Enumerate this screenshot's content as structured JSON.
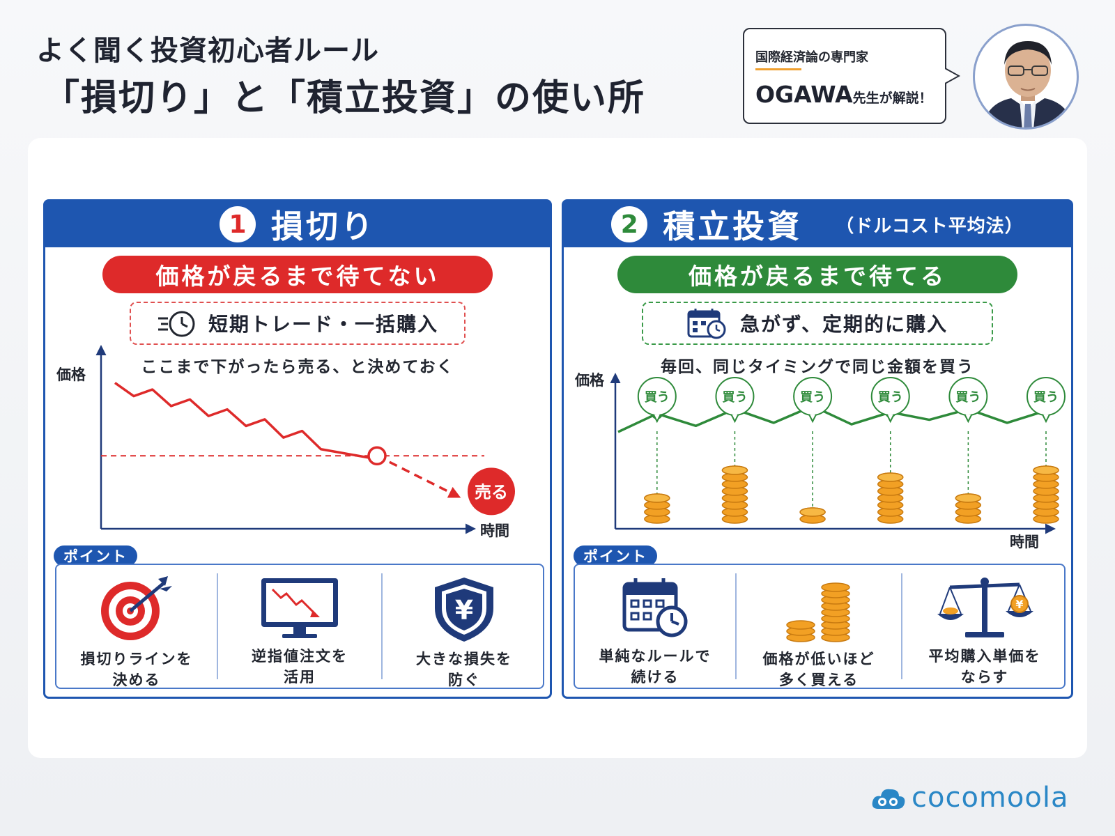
{
  "header": {
    "title_line1": "よく聞く投資初心者ルール",
    "title_line2": "「損切り」と「積立投資」の使い所"
  },
  "speaker": {
    "role": "国際経済論の専門家",
    "name": "OGAWA",
    "name_suffix": "先生が解説！"
  },
  "left_panel": {
    "number": "1",
    "title": "損切り",
    "pill": "価格が戻るまで待てない",
    "subtitle": "短期トレード・一括購入",
    "caption": "ここまで下がったら売る、と決めておく",
    "point_label": "ポイント",
    "points": [
      {
        "icon": "target-icon",
        "text": "損切りラインを\n決める"
      },
      {
        "icon": "monitor-chart-icon",
        "text": "逆指値注文を\n活用"
      },
      {
        "icon": "yen-shield-icon",
        "text": "大きな損失を\n防ぐ"
      }
    ]
  },
  "right_panel": {
    "number": "2",
    "title": "積立投資",
    "title_sub": "（ドルコスト平均法）",
    "pill": "価格が戻るまで待てる",
    "subtitle": "急がず、定期的に購入",
    "caption": "毎回、同じタイミングで同じ金額を買う",
    "point_label": "ポイント",
    "points": [
      {
        "icon": "calendar-clock-icon",
        "text": "単純なルールで\n続ける"
      },
      {
        "icon": "coin-stack-icon",
        "text": "価格が低いほど\n多く買える"
      },
      {
        "icon": "balance-scale-icon",
        "text": "平均購入単価を\nならす"
      }
    ]
  },
  "chart_data": [
    {
      "type": "line",
      "ylabel": "価格",
      "xlabel": "時間",
      "series": [
        {
          "values": [
            88,
            80,
            84,
            74,
            78,
            68,
            72,
            62,
            66,
            55,
            59,
            48,
            46,
            44,
            42
          ]
        }
      ],
      "stop_loss_level": 44,
      "projection": [
        44,
        20
      ],
      "annotation": "売る",
      "ylim": [
        0,
        100
      ]
    },
    {
      "type": "line",
      "ylabel": "価格",
      "xlabel": "時間",
      "series": [
        {
          "values": [
            50,
            62,
            54,
            65,
            56,
            67,
            55,
            63,
            58,
            65,
            56,
            64
          ]
        }
      ],
      "buy_points": [
        {
          "label": "買う",
          "price": 62,
          "coins": 4
        },
        {
          "label": "買う",
          "price": 54,
          "coins": 8
        },
        {
          "label": "買う",
          "price": 65,
          "coins": 2
        },
        {
          "label": "買う",
          "price": 56,
          "coins": 7
        },
        {
          "label": "買う",
          "price": 67,
          "coins": 4
        },
        {
          "label": "買う",
          "price": 55,
          "coins": 8
        }
      ],
      "ylim": [
        0,
        100
      ]
    }
  ],
  "brand": {
    "logo_text": "cocomoola",
    "red": "#de2a2a",
    "green": "#2e8a3a",
    "blue": "#1e56b0",
    "coin": "#f2a024"
  }
}
